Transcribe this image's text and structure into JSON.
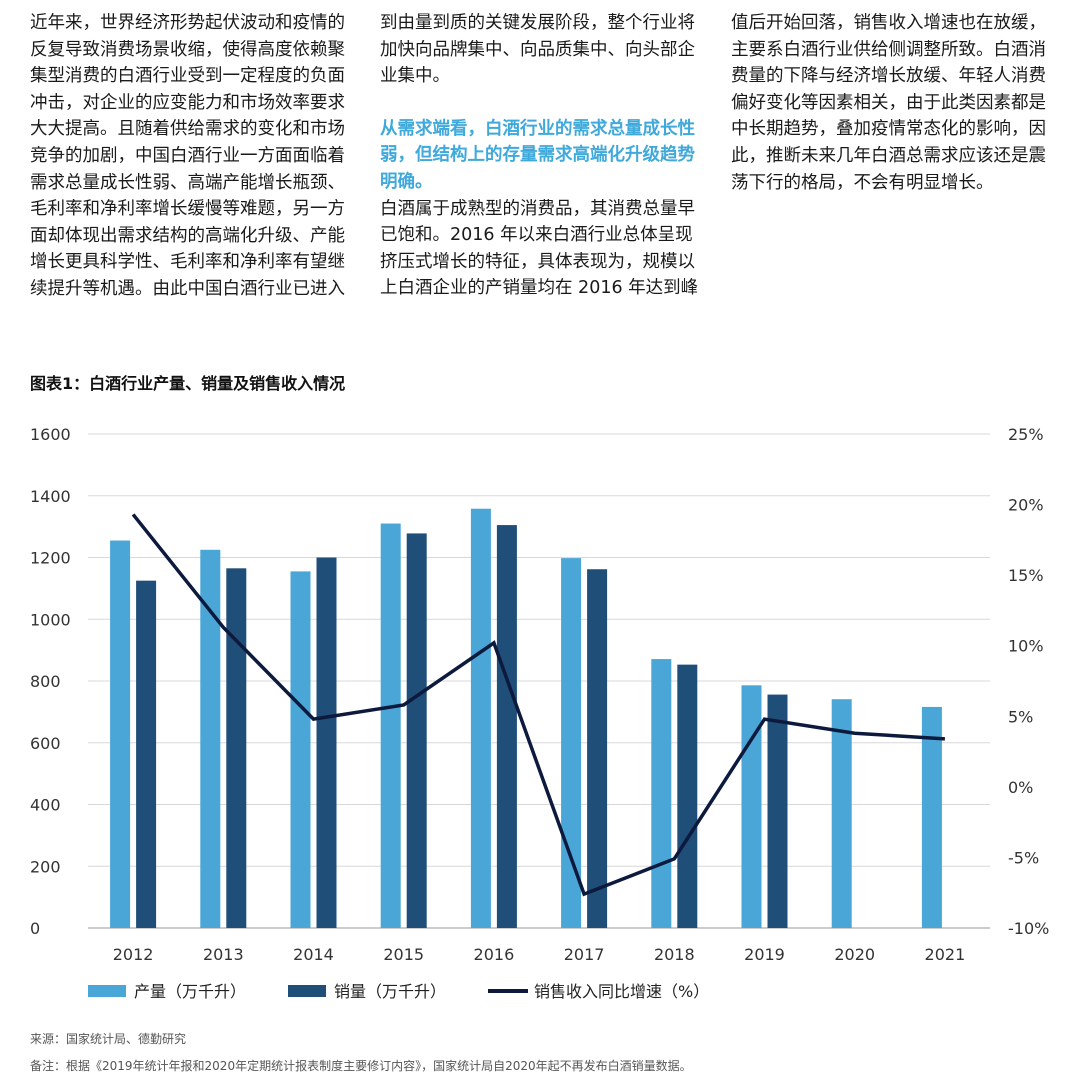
{
  "article": {
    "col1": "近年来，世界经济形势起伏波动和疫情的反复导致消费场景收缩，使得高度依赖聚集型消费的白酒行业受到一定程度的负面冲击，对企业的应变能力和市场效率要求大大提高。且随着供给需求的变化和市场竞争的加剧，中国白酒行业一方面面临着需求总量成长性弱、高端产能增长瓶颈、毛利率和净利率增长缓慢等难题，另一方面却体现出需求结构的高端化升级、产能增长更具科学性、毛利率和净利率有望继续提升等机遇。由此中国白酒行业已进入",
    "col2_top": "到由量到质的关键发展阶段，整个行业将加快向品牌集中、向品质集中、向头部企业集中。",
    "col2_highlight": "从需求端看，白酒行业的需求总量成长性弱，但结构上的存量需求高端化升级趋势明确。",
    "col2_body": "白酒属于成熟型的消费品，其消费总量早已饱和。2016 年以来白酒行业总体呈现挤压式增长的特征，具体表现为，规模以上白酒企业的产销量均在 2016 年达到峰",
    "col3": "值后开始回落，销售收入增速也在放缓，主要系白酒行业供给侧调整所致。白酒消费量的下降与经济增长放缓、年轻人消费偏好变化等因素相关，由于此类因素都是中长期趋势，叠加疫情常态化的影响，因此，推断未来几年白酒总需求应该还是震荡下行的格局，不会有明显增长。"
  },
  "chart_title": "图表1：白酒行业产量、销量及销售收入情况",
  "chart_data": {
    "type": "bar",
    "title": "图表1：白酒行业产量、销量及销售收入情况",
    "categories": [
      "2012",
      "2013",
      "2014",
      "2015",
      "2016",
      "2017",
      "2018",
      "2019",
      "2020",
      "2021"
    ],
    "series": [
      {
        "name": "产量（万千升）",
        "type": "bar",
        "axis": "left",
        "color": "#4aa6d6",
        "values": [
          1255,
          1225,
          1155,
          1310,
          1358,
          1198,
          871,
          786,
          741,
          716
        ]
      },
      {
        "name": "销量（万千升）",
        "type": "bar",
        "axis": "left",
        "color": "#1f4e79",
        "values": [
          1125,
          1165,
          1200,
          1278,
          1305,
          1162,
          853,
          756,
          null,
          null
        ]
      },
      {
        "name": "销售收入同比增速（%）",
        "type": "line",
        "axis": "right",
        "color": "#0d1a3d",
        "values": [
          19.3,
          11.3,
          4.8,
          5.8,
          10.2,
          -7.6,
          -5.1,
          4.8,
          3.8,
          3.4
        ]
      }
    ],
    "ylim_left": [
      0,
      1600
    ],
    "yticks_left": [
      "0",
      "200",
      "400",
      "600",
      "800",
      "1000",
      "1200",
      "1400",
      "1600"
    ],
    "ylim_right": [
      -10,
      25
    ],
    "yticks_right": [
      "-10%",
      "-5%",
      "0%",
      "5%",
      "10%",
      "15%",
      "20%",
      "25%"
    ],
    "grid": true,
    "legend": "bottom-left"
  },
  "footnotes": {
    "source": "来源：国家统计局、德勤研究",
    "note": "备注：根据《2019年统计年报和2020年定期统计报表制度主要修订内容》，国家统计局自2020年起不再发布白酒销量数据。"
  },
  "colors": {
    "highlight": "#3fa9db",
    "bar1": "#4aa6d6",
    "bar2": "#1f4e79",
    "line": "#0d1a3d"
  }
}
